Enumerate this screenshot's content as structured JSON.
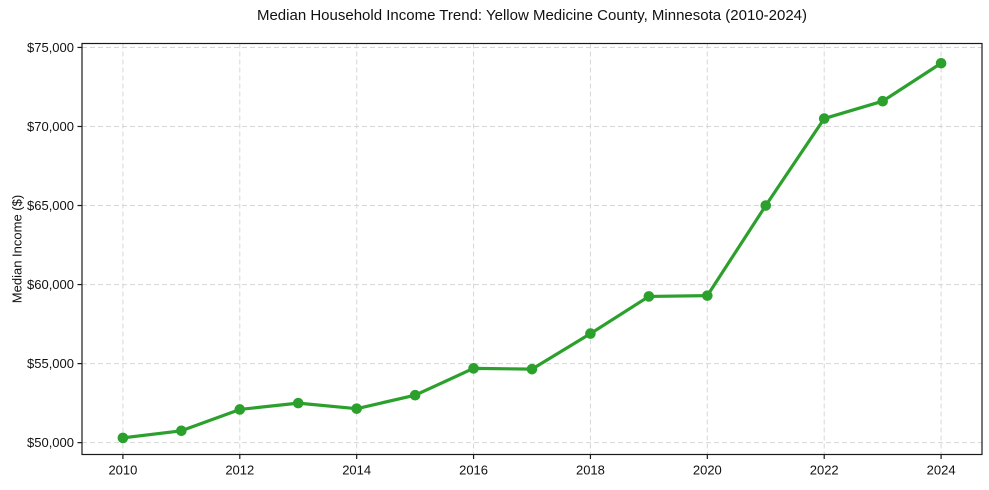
{
  "chart_data": {
    "type": "line",
    "title": "Median Household Income Trend: Yellow Medicine County, Minnesota (2010-2024)",
    "xlabel": "",
    "ylabel": "Median Income ($)",
    "x": [
      2010,
      2011,
      2012,
      2013,
      2014,
      2015,
      2016,
      2017,
      2018,
      2019,
      2020,
      2021,
      2022,
      2023,
      2024
    ],
    "series": [
      {
        "name": "Median Household Income",
        "values": [
          50300,
          50750,
          52100,
          52500,
          52150,
          53000,
          54700,
          54650,
          56900,
          59250,
          59300,
          65000,
          70500,
          71600,
          74000
        ]
      }
    ],
    "xlim": [
      2009.3,
      2024.7
    ],
    "ylim": [
      49250,
      75250
    ],
    "xticks": [
      2010,
      2012,
      2014,
      2016,
      2018,
      2020,
      2022,
      2024
    ],
    "xtick_labels": [
      "2010",
      "2012",
      "2014",
      "2016",
      "2018",
      "2020",
      "2022",
      "2024"
    ],
    "yticks": [
      50000,
      55000,
      60000,
      65000,
      70000,
      75000
    ],
    "ytick_labels": [
      "$50,000",
      "$55,000",
      "$60,000",
      "$65,000",
      "$70,000",
      "$75,000"
    ],
    "grid": "on",
    "grid_style": "dashed",
    "legend": "none",
    "line_color": "#2ca02c",
    "marker": "circle",
    "background_color": "#ffffff",
    "grid_color": "#d6d6d6",
    "spine_color": "#1a1a1a"
  }
}
